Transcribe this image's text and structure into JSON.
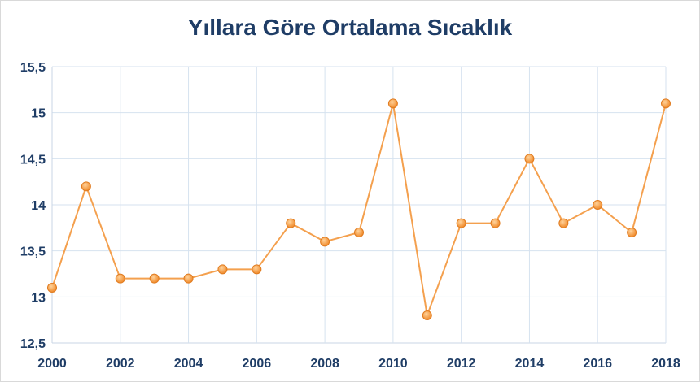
{
  "chart_data": {
    "type": "line",
    "title": "Yıllara Göre Ortalama Sıcaklık",
    "x": [
      2000,
      2001,
      2002,
      2003,
      2004,
      2005,
      2006,
      2007,
      2008,
      2009,
      2010,
      2011,
      2012,
      2013,
      2014,
      2015,
      2016,
      2017,
      2018
    ],
    "series": [
      {
        "values": [
          13.1,
          14.2,
          13.2,
          13.2,
          13.2,
          13.3,
          13.3,
          13.8,
          13.6,
          13.7,
          15.1,
          12.8,
          13.8,
          13.8,
          14.5,
          13.8,
          14.0,
          13.7,
          15.1
        ],
        "color": "#f4a04e",
        "marker_color": "#f08a2a"
      }
    ],
    "xlim": [
      2000,
      2018
    ],
    "ylim": [
      12.5,
      15.5
    ],
    "x_ticks": [
      2000,
      2002,
      2004,
      2006,
      2008,
      2010,
      2012,
      2014,
      2016,
      2018
    ],
    "x_tick_labels": [
      "2000",
      "2002",
      "2004",
      "2006",
      "2008",
      "2010",
      "2012",
      "2014",
      "2016",
      "2018"
    ],
    "y_ticks": [
      12.5,
      13,
      13.5,
      14,
      14.5,
      15,
      15.5
    ],
    "y_tick_labels": [
      "12,5",
      "13",
      "13,5",
      "14",
      "14,5",
      "15",
      "15,5"
    ],
    "grid": true,
    "legend": "none"
  }
}
